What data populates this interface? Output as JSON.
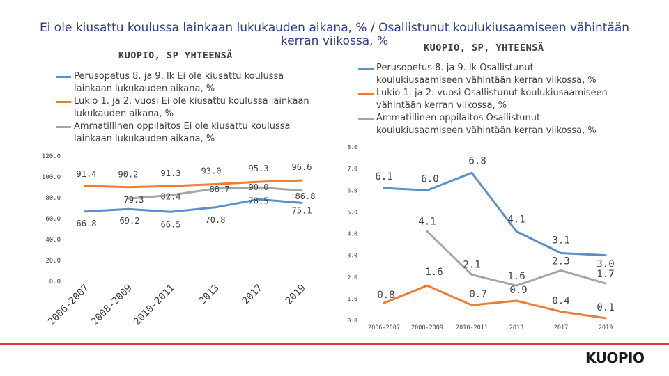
{
  "page": {
    "title": "Ei ole kiusattu koulussa lainkaan lukukauden aikana, % / Osallistunut koulukiusaamiseen vähintään kerran viikossa, %",
    "logo_text": "KUOPIO"
  },
  "colors": {
    "perusopetus": "#5b8fc9",
    "lukio": "#ed7d31",
    "ammatillinen": "#a5a5a5",
    "axis_text": "#404040",
    "accent_rule": "#e03a3e"
  },
  "chart_data": [
    {
      "type": "line",
      "title": "KUOPIO, SP YHTEENSÄ",
      "categories": [
        "2006-2007",
        "2008-2009",
        "2010-2011",
        "2013",
        "2017",
        "2019"
      ],
      "ylim": [
        0,
        120
      ],
      "yticks": [
        "0.0",
        "20.0",
        "40.0",
        "60.0",
        "80.0",
        "100.0",
        "120.0"
      ],
      "series": [
        {
          "name": "Perusopetus 8. ja 9. lk Ei ole kiusattu koulussa lainkaan lukukauden aikana, %",
          "values": [
            66.8,
            69.2,
            66.5,
            70.8,
            78.5,
            75.1
          ],
          "labels": [
            "66.8",
            "69.2",
            "66.5",
            "70.8",
            "78.5",
            "75.1"
          ]
        },
        {
          "name": "Lukio 1. ja 2. vuosi Ei ole kiusattu koulussa lainkaan lukukauden aikana, %",
          "values": [
            91.4,
            90.2,
            91.3,
            93.0,
            95.3,
            96.6
          ],
          "labels": [
            "91.4",
            "90.2",
            "91.3",
            "93.0",
            "95.3",
            "96.6"
          ]
        },
        {
          "name": "Ammatillinen oppilaitos Ei ole kiusattu koulussa lainkaan lukukauden aikana, %",
          "values": [
            null,
            79.3,
            82.4,
            88.7,
            90.0,
            86.8
          ],
          "labels": [
            "",
            "79.3",
            "82.4",
            "88.7",
            "90.0",
            "86.8"
          ]
        }
      ]
    },
    {
      "type": "line",
      "title": "KUOPIO, SP, YHTEENSÄ",
      "categories": [
        "2006-2007",
        "2008-2009",
        "2010-2011",
        "2013",
        "2017",
        "2019"
      ],
      "ylim": [
        0,
        8
      ],
      "yticks": [
        "0.0",
        "1.0",
        "2.0",
        "3.0",
        "4.0",
        "5.0",
        "6.0",
        "7.0",
        "8.0"
      ],
      "series": [
        {
          "name": "Perusopetus 8. ja 9. lk Osallistunut koulukiusaamiseen vähintään kerran viikossa, %",
          "values": [
            6.1,
            6.0,
            6.8,
            4.1,
            3.1,
            3.0
          ],
          "labels": [
            "6.1",
            "6.0",
            "6.8",
            "4.1",
            "3.1",
            "3.0"
          ]
        },
        {
          "name": "Lukio 1. ja 2. vuosi Osallistunut koulukiusaamiseen vähintään kerran viikossa, %",
          "values": [
            0.8,
            1.6,
            0.7,
            0.9,
            0.4,
            0.1
          ],
          "labels": [
            "0.8",
            "1.6",
            "0.7",
            "0.9",
            "0.4",
            "0.1"
          ]
        },
        {
          "name": "Ammatillinen oppilaitos Osallistunut koulukiusaamiseen vähintään kerran viikossa, %",
          "values": [
            null,
            4.1,
            2.1,
            1.6,
            2.3,
            1.7
          ],
          "labels": [
            "",
            "4.1",
            "2.1",
            "1.6",
            "2.3",
            "1.7"
          ]
        }
      ]
    }
  ]
}
